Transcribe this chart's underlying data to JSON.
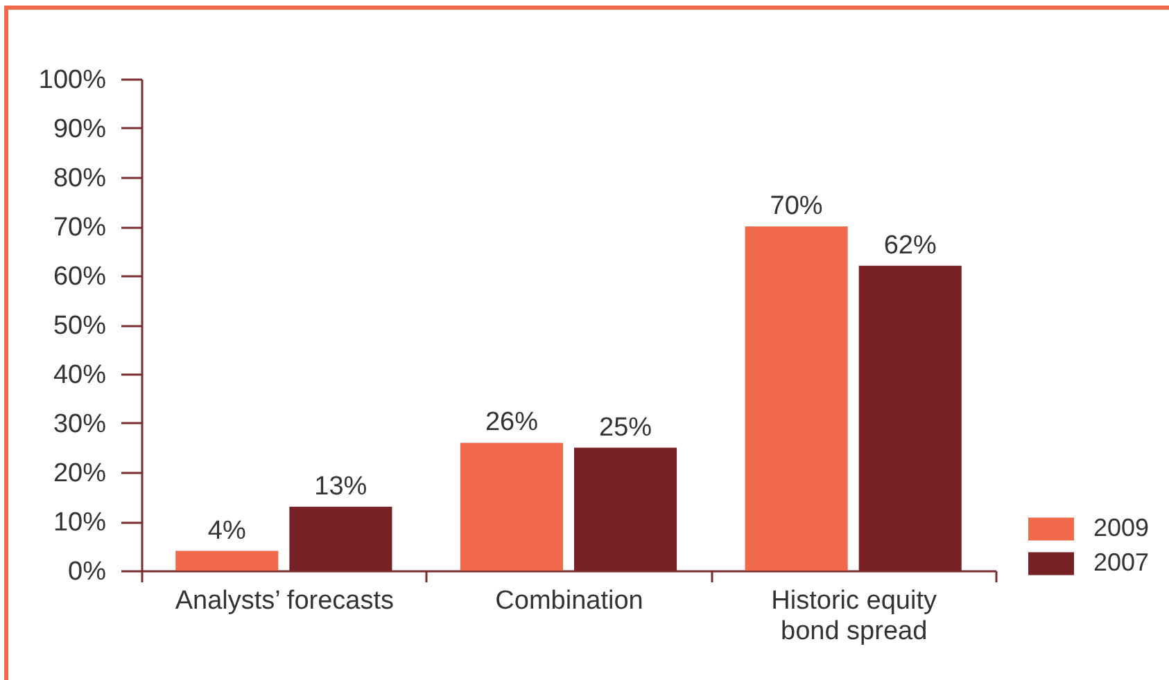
{
  "chart_data": {
    "type": "bar",
    "categories": [
      "Analysts’ forecasts",
      "Combination",
      "Historic equity bond spread"
    ],
    "series": [
      {
        "name": "2009",
        "color": "#f1694b",
        "values": [
          4,
          26,
          70
        ],
        "value_labels": [
          "4%",
          "26%",
          "70%"
        ]
      },
      {
        "name": "2007",
        "color": "#772126",
        "values": [
          13,
          25,
          62
        ],
        "value_labels": [
          "13%",
          "25%",
          "62%"
        ]
      }
    ],
    "ylim": [
      0,
      100
    ],
    "yticks": [
      {
        "value": 0,
        "label": "0%"
      },
      {
        "value": 10,
        "label": "10%"
      },
      {
        "value": 20,
        "label": "20%"
      },
      {
        "value": 30,
        "label": "30%"
      },
      {
        "value": 40,
        "label": "40%"
      },
      {
        "value": 50,
        "label": "50%"
      },
      {
        "value": 60,
        "label": "60%"
      },
      {
        "value": 70,
        "label": "70%"
      },
      {
        "value": 80,
        "label": "80%"
      },
      {
        "value": 90,
        "label": "90%"
      },
      {
        "value": 100,
        "label": "100%"
      }
    ],
    "legend": "bottom right"
  }
}
